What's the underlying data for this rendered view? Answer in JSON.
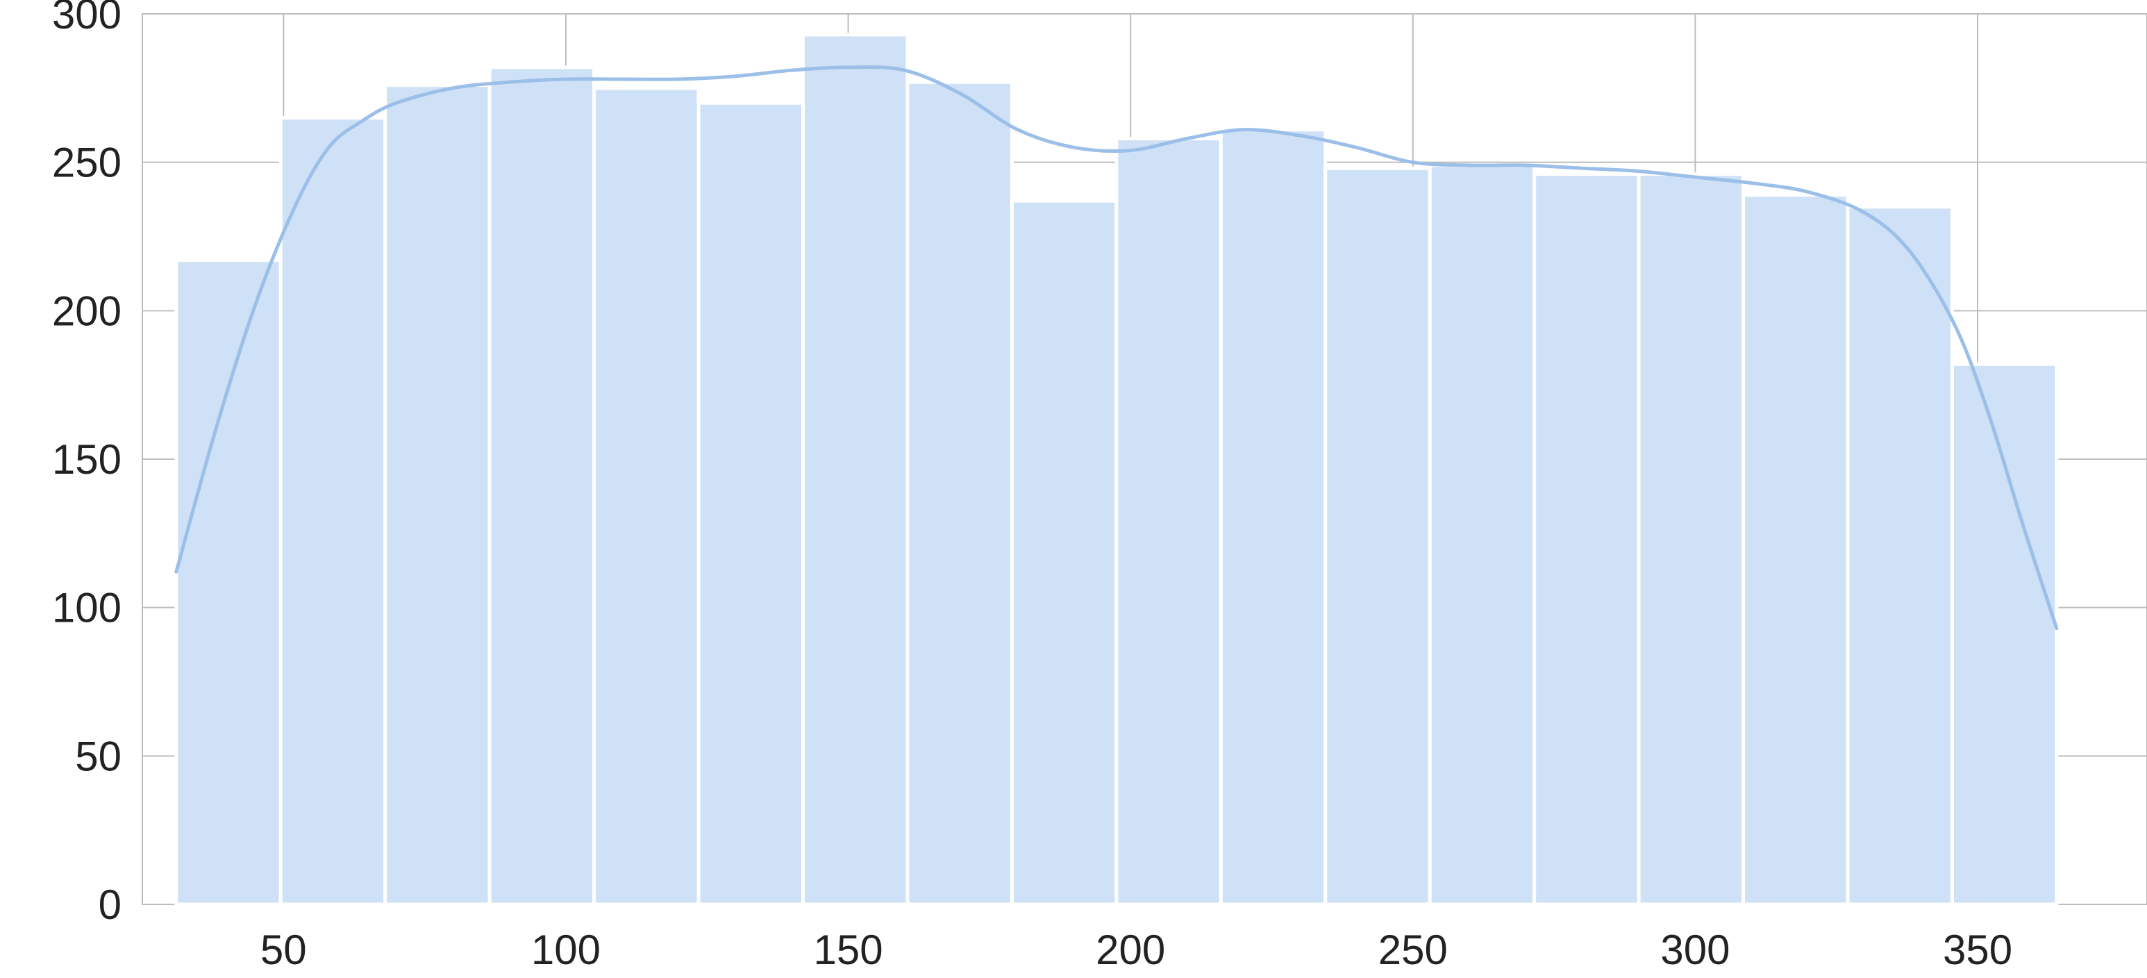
{
  "chart_data": {
    "type": "bar",
    "subtype": "histogram-with-kde",
    "title": "",
    "xlabel": "",
    "ylabel": "",
    "xlim": [
      25,
      380
    ],
    "ylim": [
      0,
      300
    ],
    "xticks": [
      50,
      100,
      150,
      200,
      250,
      300,
      350
    ],
    "yticks": [
      0,
      50,
      100,
      150,
      200,
      250,
      300
    ],
    "grid": true,
    "bin_edges": [
      31,
      49.5,
      68,
      86.5,
      105,
      123.5,
      142,
      160.5,
      179,
      197.5,
      216,
      234.5,
      253,
      271.5,
      290,
      308.5,
      327,
      345.5,
      364
    ],
    "counts": [
      217,
      265,
      276,
      282,
      275,
      270,
      293,
      277,
      237,
      258,
      261,
      248,
      249,
      246,
      246,
      239,
      235,
      182
    ],
    "kde_curve": {
      "x": [
        31,
        38,
        45,
        52,
        58,
        64,
        70,
        80,
        90,
        100,
        110,
        120,
        130,
        140,
        150,
        160,
        170,
        180,
        190,
        200,
        210,
        220,
        230,
        240,
        250,
        260,
        270,
        280,
        290,
        300,
        310,
        320,
        330,
        338,
        346,
        352,
        358,
        364
      ],
      "y": [
        112,
        160,
        202,
        235,
        255,
        264,
        270,
        275,
        277,
        278,
        278,
        278,
        279,
        281,
        282,
        281,
        273,
        261,
        255,
        254,
        258,
        261,
        259,
        255,
        250,
        249,
        249,
        248,
        247,
        245,
        243,
        240,
        233,
        220,
        195,
        165,
        128,
        93
      ]
    },
    "colors": {
      "bar": "#cfe1f7",
      "kde": "#9bbfe8",
      "grid": "#bdbdbd"
    }
  }
}
